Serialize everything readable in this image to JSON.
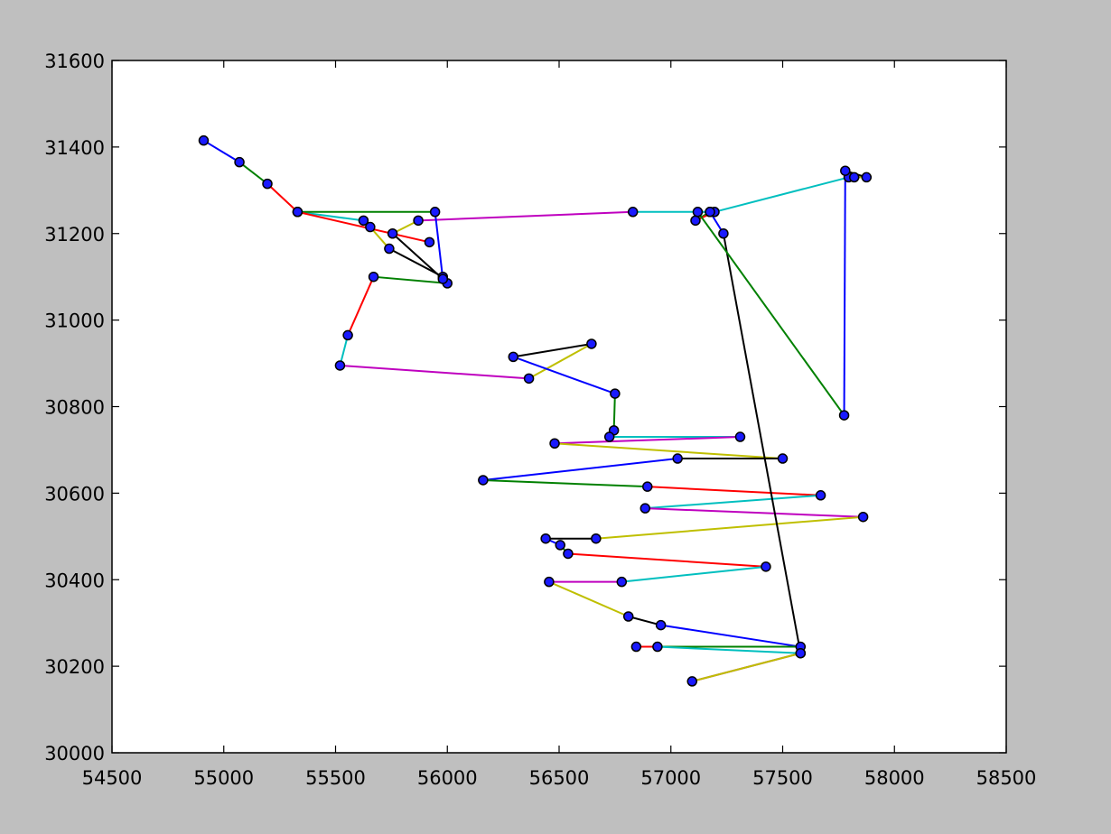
{
  "chart_data": {
    "type": "line",
    "title": "",
    "xlabel": "",
    "ylabel": "",
    "xlim": [
      54500,
      58500
    ],
    "ylim": [
      30000,
      31600
    ],
    "x_ticks": [
      54500,
      55000,
      55500,
      56000,
      56500,
      57000,
      57500,
      58000,
      58500
    ],
    "y_ticks": [
      30000,
      30200,
      30400,
      30600,
      30800,
      31000,
      31200,
      31400,
      31600
    ],
    "x_tick_labels": [
      "54500",
      "55000",
      "55500",
      "56000",
      "56500",
      "57000",
      "57500",
      "58000",
      "58500"
    ],
    "y_tick_labels": [
      "30000",
      "30200",
      "30400",
      "30600",
      "30800",
      "31000",
      "31200",
      "31400",
      "31600"
    ],
    "grid": false,
    "legend": "none",
    "marker_color": "#1a1aff",
    "color_cycle": [
      "#0000ff",
      "#008000",
      "#ff0000",
      "#00bfbf",
      "#bf00bf",
      "#bfbf00",
      "#000000"
    ],
    "points": [
      [
        54910,
        31415
      ],
      [
        55070,
        31365
      ],
      [
        55195,
        31315
      ],
      [
        55330,
        31250
      ],
      [
        55625,
        31230
      ],
      [
        55655,
        31215
      ],
      [
        55740,
        31165
      ],
      [
        55980,
        31100
      ],
      [
        56000,
        31085
      ],
      [
        55670,
        31100
      ],
      [
        55555,
        30965
      ],
      [
        55520,
        30895
      ],
      [
        56365,
        30865
      ],
      [
        56645,
        30945
      ],
      [
        56295,
        30915
      ],
      [
        56750,
        30830
      ],
      [
        56745,
        30745
      ],
      [
        56725,
        30730
      ],
      [
        57310,
        30730
      ],
      [
        56480,
        30715
      ],
      [
        57500,
        30680
      ],
      [
        57030,
        30680
      ],
      [
        56160,
        30630
      ],
      [
        56895,
        30615
      ],
      [
        57670,
        30595
      ],
      [
        56885,
        30565
      ],
      [
        57860,
        30545
      ],
      [
        56665,
        30495
      ],
      [
        56440,
        30495
      ],
      [
        56505,
        30480
      ],
      [
        56540,
        30460
      ],
      [
        57425,
        30430
      ],
      [
        56780,
        30395
      ],
      [
        56455,
        30395
      ],
      [
        56810,
        30315
      ],
      [
        56955,
        30295
      ],
      [
        57580,
        30245
      ],
      [
        56845,
        30245
      ],
      [
        56940,
        30245
      ],
      [
        57580,
        30230
      ],
      [
        57095,
        30165
      ],
      [
        57580,
        30230
      ],
      [
        57235,
        31200
      ],
      [
        57175,
        31250
      ],
      [
        57110,
        31230
      ],
      [
        57195,
        31250
      ],
      [
        57795,
        31330
      ],
      [
        57820,
        31330
      ],
      [
        57875,
        31330
      ],
      [
        57780,
        31345
      ],
      [
        57775,
        30780
      ],
      [
        57120,
        31250
      ],
      [
        57175,
        31250
      ],
      [
        56830,
        31250
      ],
      [
        55870,
        31230
      ],
      [
        55755,
        31200
      ],
      [
        55980,
        31095
      ],
      [
        55945,
        31250
      ],
      [
        55330,
        31250
      ],
      [
        55920,
        31180
      ]
    ]
  }
}
